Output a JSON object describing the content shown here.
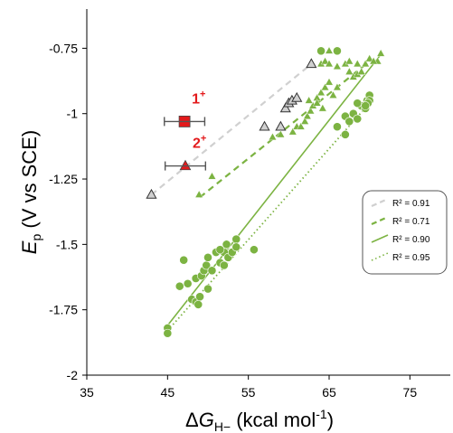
{
  "chart_data": {
    "type": "scatter",
    "title": "",
    "xlabel": {
      "main": "ΔG",
      "sub": "H−",
      "unit": " (kcal mol",
      "sup": "-1",
      "close": ")"
    },
    "ylabel": {
      "main": "E",
      "sub": "p",
      "unit": " (V vs SCE)"
    },
    "xlim": [
      35,
      80
    ],
    "ylim": [
      -2.0,
      -0.6
    ],
    "x_ticks": [
      35,
      45,
      55,
      65,
      75
    ],
    "x_tick_labels": [
      "35",
      "45",
      "55",
      "65",
      "75"
    ],
    "y_ticks": [
      -0.75,
      -1.0,
      -1.25,
      -1.5,
      -1.75,
      -2.0
    ],
    "y_tick_labels": [
      "-0.75",
      "-1",
      "-1.25",
      "-1.5",
      "-1.75",
      "-2"
    ],
    "grid": false,
    "legend_placement": "right",
    "series": [
      {
        "marker": "triangle-open",
        "color": "#d0d0d0",
        "points": [
          [
            43.0,
            -1.31
          ],
          [
            57.0,
            -1.05
          ],
          [
            59.0,
            -1.05
          ],
          [
            59.6,
            -0.98
          ],
          [
            60.0,
            -0.96
          ],
          [
            60.4,
            -0.95
          ],
          [
            61.0,
            -0.94
          ],
          [
            62.8,
            -0.81
          ]
        ],
        "fit": {
          "x": [
            43.0,
            62.8
          ],
          "y": [
            -1.31,
            -0.81
          ],
          "style": "dashed",
          "r2": "R² = 0.91"
        }
      },
      {
        "marker": "triangle",
        "color": "#7cb342",
        "points": [
          [
            48.9,
            -1.31
          ],
          [
            50.5,
            -1.24
          ],
          [
            58.0,
            -1.09
          ],
          [
            59.0,
            -1.08
          ],
          [
            60.5,
            -1.07
          ],
          [
            61.0,
            -1.05
          ],
          [
            61.5,
            -1.05
          ],
          [
            62.0,
            -1.03
          ],
          [
            62.3,
            -1.01
          ],
          [
            62.7,
            -0.99
          ],
          [
            63.0,
            -0.97
          ],
          [
            63.5,
            -0.94
          ],
          [
            64.0,
            -0.92
          ],
          [
            64.5,
            -0.9
          ],
          [
            65.0,
            -0.88
          ],
          [
            62.5,
            -0.95
          ],
          [
            63.5,
            -0.96
          ],
          [
            64.2,
            -0.98
          ],
          [
            65.5,
            -0.93
          ],
          [
            66.0,
            -0.9
          ],
          [
            64.0,
            -0.81
          ],
          [
            64.5,
            -0.8
          ],
          [
            65.0,
            -0.81
          ],
          [
            66.0,
            -0.82
          ],
          [
            67.0,
            -0.81
          ],
          [
            67.5,
            -0.84
          ],
          [
            68.0,
            -0.86
          ],
          [
            68.5,
            -0.85
          ],
          [
            69.0,
            -0.84
          ],
          [
            69.5,
            -0.81
          ],
          [
            70.0,
            -0.79
          ],
          [
            71.0,
            -0.8
          ],
          [
            71.4,
            -0.77
          ],
          [
            65.0,
            -0.76
          ],
          [
            66.0,
            -0.76
          ],
          [
            67.5,
            -0.8
          ],
          [
            68.5,
            -0.81
          ],
          [
            70.5,
            -0.8
          ]
        ],
        "fit": {
          "x": [
            49.0,
            70.0
          ],
          "y": [
            -1.32,
            -0.8
          ],
          "style": "dashed",
          "r2": "R² = 0.71"
        }
      },
      {
        "marker": "circle",
        "color": "#7cb342",
        "points": [
          [
            45.0,
            -1.82
          ],
          [
            45.0,
            -1.84
          ],
          [
            46.5,
            -1.66
          ],
          [
            47.0,
            -1.56
          ],
          [
            47.5,
            -1.65
          ],
          [
            48.0,
            -1.71
          ],
          [
            48.5,
            -1.72
          ],
          [
            48.5,
            -1.63
          ],
          [
            48.8,
            -1.73
          ],
          [
            49.0,
            -1.7
          ],
          [
            49.2,
            -1.62
          ],
          [
            49.5,
            -1.6
          ],
          [
            50.0,
            -1.67
          ],
          [
            49.8,
            -1.58
          ],
          [
            50.0,
            -1.55
          ],
          [
            50.5,
            -1.6
          ],
          [
            51.0,
            -1.53
          ],
          [
            51.5,
            -1.57
          ],
          [
            52.0,
            -1.53
          ],
          [
            52.3,
            -1.5
          ],
          [
            52.5,
            -1.55
          ],
          [
            53.0,
            -1.53
          ],
          [
            53.5,
            -1.48
          ],
          [
            53.5,
            -1.51
          ],
          [
            51.5,
            -1.52
          ],
          [
            52.0,
            -1.58
          ],
          [
            55.7,
            -1.52
          ],
          [
            64.0,
            -0.76
          ],
          [
            66.0,
            -0.76
          ],
          [
            66.0,
            -1.05
          ],
          [
            67.0,
            -1.08
          ],
          [
            67.0,
            -1.01
          ],
          [
            67.5,
            -1.03
          ],
          [
            68.0,
            -1.0
          ],
          [
            68.5,
            -1.02
          ],
          [
            69.0,
            -0.97
          ],
          [
            69.5,
            -0.98
          ],
          [
            69.7,
            -0.95
          ],
          [
            70.0,
            -0.93
          ],
          [
            70.0,
            -0.95
          ],
          [
            69.8,
            -0.96
          ],
          [
            68.5,
            -0.96
          ],
          [
            69.5,
            -0.97
          ]
        ],
        "fit_solid": {
          "x": [
            45.0,
            71.5
          ],
          "y": [
            -1.81,
            -0.77
          ],
          "style": "solid",
          "r2": "R² = 0.90"
        },
        "fit_dotted": {
          "x": [
            45.0,
            70.0
          ],
          "y": [
            -1.83,
            -0.96
          ],
          "style": "dotted",
          "r2": "R² = 0.95"
        }
      },
      {
        "marker": "square",
        "color": "#e31a1c",
        "points": [
          [
            47.1,
            -1.03
          ]
        ],
        "xerr": 2.5,
        "label": "1",
        "label_sup": "+"
      },
      {
        "marker": "triangle",
        "color": "#e31a1c",
        "points": [
          [
            47.2,
            -1.2
          ]
        ],
        "xerr": 2.5,
        "label": "2",
        "label_sup": "+"
      }
    ],
    "legend": [
      {
        "line_style": "dashed",
        "color": "#d0d0d0",
        "text": "R² = 0.91"
      },
      {
        "line_style": "dashed",
        "color": "#7cb342",
        "text": "R² = 0.71"
      },
      {
        "line_style": "solid",
        "color": "#7cb342",
        "text": "R² = 0.90"
      },
      {
        "line_style": "dotted",
        "color": "#7cb342",
        "text": "R² = 0.95"
      }
    ]
  }
}
